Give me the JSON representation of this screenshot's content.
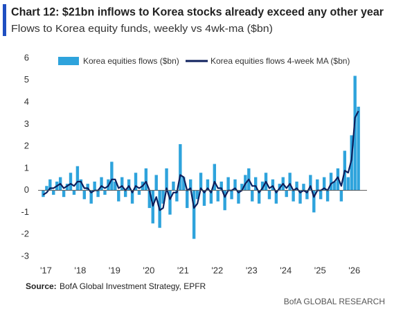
{
  "chart_data": {
    "type": "bar_line",
    "title": "Chart 12: $21bn inflows to Korea stocks already exceed any other year",
    "subtitle": "Flows to Korea equity funds, weekly vs 4wk-ma ($bn)",
    "source_label": "Source:",
    "source": "BofA Global Investment Strategy, EPFR",
    "brand": "BofA GLOBAL RESEARCH",
    "legend_position": "top",
    "xlim": [
      2016.85,
      2026.45
    ],
    "xticks": [
      {
        "value": 2017,
        "label": "'17"
      },
      {
        "value": 2018,
        "label": "'18"
      },
      {
        "value": 2019,
        "label": "'19"
      },
      {
        "value": 2020,
        "label": "'20"
      },
      {
        "value": 2021,
        "label": "'21"
      },
      {
        "value": 2022,
        "label": "'22"
      },
      {
        "value": 2023,
        "label": "'23"
      },
      {
        "value": 2024,
        "label": "'24"
      },
      {
        "value": 2025,
        "label": "'25"
      },
      {
        "value": 2026,
        "label": "'26"
      }
    ],
    "ylim": [
      -3,
      6
    ],
    "yticks": [
      -3,
      -2,
      -1,
      0,
      1,
      2,
      3,
      4,
      5,
      6
    ],
    "x": [
      2017.0,
      2017.1,
      2017.2,
      2017.3,
      2017.4,
      2017.5,
      2017.6,
      2017.7,
      2017.8,
      2017.9,
      2018.0,
      2018.1,
      2018.2,
      2018.3,
      2018.4,
      2018.5,
      2018.6,
      2018.7,
      2018.8,
      2018.9,
      2019.0,
      2019.1,
      2019.2,
      2019.3,
      2019.4,
      2019.5,
      2019.6,
      2019.7,
      2019.8,
      2019.9,
      2020.0,
      2020.1,
      2020.2,
      2020.3,
      2020.4,
      2020.5,
      2020.6,
      2020.7,
      2020.8,
      2020.9,
      2021.0,
      2021.1,
      2021.2,
      2021.3,
      2021.4,
      2021.5,
      2021.6,
      2021.7,
      2021.8,
      2021.9,
      2022.0,
      2022.1,
      2022.2,
      2022.3,
      2022.4,
      2022.5,
      2022.6,
      2022.7,
      2022.8,
      2022.9,
      2023.0,
      2023.1,
      2023.2,
      2023.3,
      2023.4,
      2023.5,
      2023.6,
      2023.7,
      2023.8,
      2023.9,
      2024.0,
      2024.1,
      2024.2,
      2024.3,
      2024.4,
      2024.5,
      2024.6,
      2024.7,
      2024.8,
      2024.9,
      2025.0,
      2025.1,
      2025.2,
      2025.3,
      2025.4,
      2025.5,
      2025.6,
      2025.7,
      2025.8,
      2025.9,
      2026.0,
      2026.1,
      2026.2
    ],
    "series": [
      {
        "name": "Korea equities flows ($bn)",
        "kind": "bar",
        "color": "#2ea3dc",
        "values": [
          -0.3,
          0.2,
          0.5,
          -0.2,
          0.4,
          0.6,
          -0.3,
          0.3,
          0.8,
          -0.2,
          1.1,
          0.5,
          -0.4,
          0.3,
          -0.6,
          0.4,
          -0.3,
          0.6,
          -0.2,
          0.5,
          1.3,
          0.4,
          -0.5,
          0.6,
          -0.3,
          0.5,
          -0.6,
          0.8,
          -0.2,
          0.4,
          1.0,
          -0.8,
          -1.5,
          0.7,
          -1.7,
          -0.6,
          1.0,
          -1.1,
          0.4,
          -0.5,
          2.1,
          0.6,
          -0.8,
          0.5,
          -2.2,
          -0.4,
          0.8,
          -0.7,
          0.5,
          -0.6,
          1.2,
          -0.5,
          0.4,
          -0.9,
          0.6,
          -0.4,
          0.5,
          -0.6,
          0.3,
          0.7,
          1.0,
          -0.5,
          0.6,
          -0.6,
          0.4,
          0.8,
          -0.4,
          0.5,
          -0.6,
          0.3,
          0.6,
          -0.3,
          0.8,
          -0.5,
          0.4,
          -0.6,
          0.3,
          -0.4,
          0.7,
          -1.0,
          0.5,
          -0.4,
          0.6,
          -0.5,
          0.8,
          0.4,
          1.0,
          -0.5,
          1.8,
          0.6,
          2.5,
          5.2,
          3.8
        ]
      },
      {
        "name": "Korea equities flows 4-week MA ($bn)",
        "kind": "line",
        "color": "#0d1f5c",
        "values": [
          -0.2,
          -0.1,
          0.1,
          0.1,
          0.2,
          0.3,
          0.1,
          0.2,
          0.3,
          0.2,
          0.4,
          0.4,
          0.1,
          0.1,
          -0.1,
          0.0,
          0.0,
          0.2,
          0.1,
          0.2,
          0.5,
          0.5,
          0.1,
          0.2,
          0.0,
          0.2,
          -0.1,
          0.2,
          0.1,
          0.2,
          0.4,
          0.0,
          -0.7,
          -0.3,
          -0.9,
          -0.8,
          0.1,
          -0.4,
          -0.1,
          -0.1,
          0.7,
          0.6,
          0.0,
          0.1,
          -0.8,
          -0.6,
          0.1,
          -0.1,
          0.1,
          -0.1,
          0.4,
          0.1,
          0.1,
          -0.3,
          0.0,
          0.0,
          0.1,
          -0.1,
          0.0,
          0.3,
          0.5,
          0.2,
          0.2,
          -0.1,
          0.1,
          0.4,
          0.1,
          0.2,
          -0.1,
          0.1,
          0.3,
          0.1,
          0.3,
          0.0,
          0.1,
          -0.1,
          0.0,
          -0.1,
          0.2,
          -0.3,
          0.0,
          0.0,
          0.1,
          0.0,
          0.3,
          0.4,
          0.6,
          0.2,
          0.9,
          0.8,
          1.4,
          3.3,
          3.6
        ]
      }
    ]
  }
}
